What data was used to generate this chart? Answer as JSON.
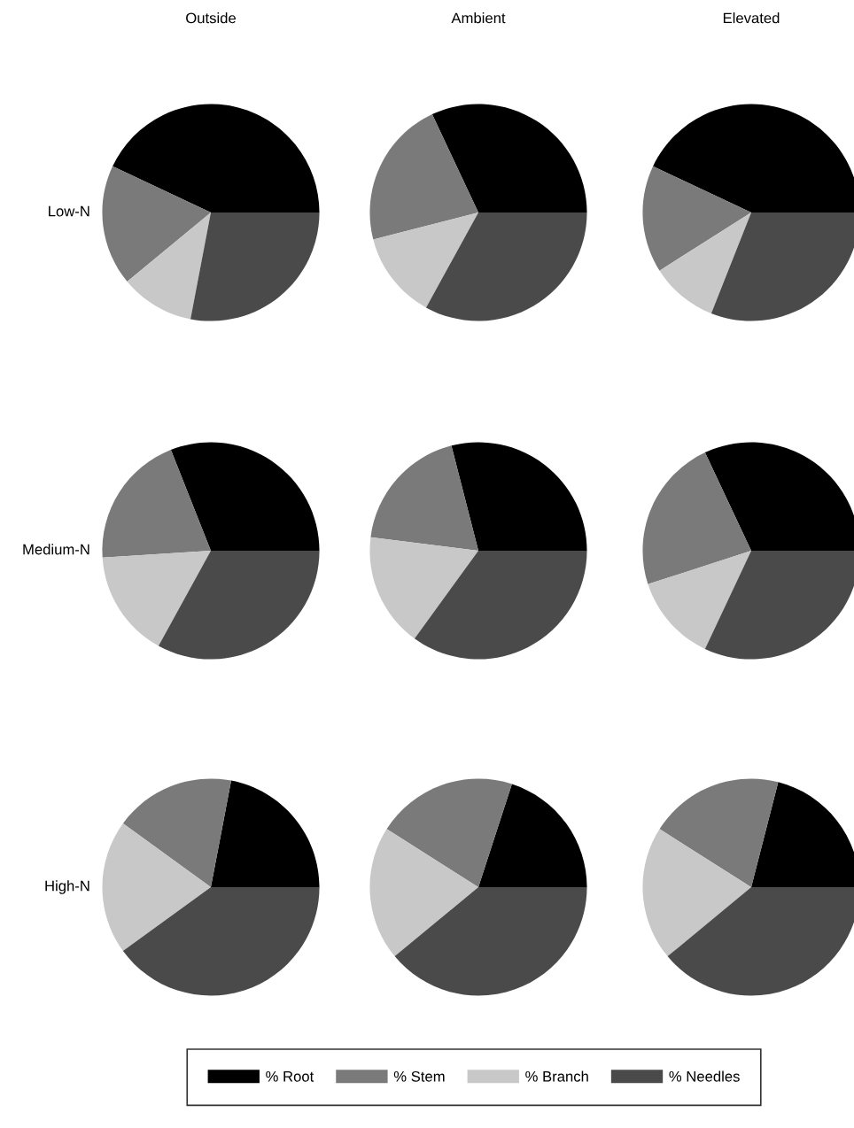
{
  "chart_data": [
    {
      "type": "pie",
      "title": "Outside",
      "ylabel": "Low-N",
      "categories": [
        "% Root",
        "% Stem",
        "% Branch",
        "% Needles"
      ],
      "values": [
        43,
        18,
        11,
        28
      ],
      "colors": [
        "#000000",
        "#7a7a7a",
        "#c8c8c8",
        "#4a4a4a"
      ],
      "legend": "bottom"
    },
    {
      "type": "pie",
      "title": "Ambient",
      "categories": [
        null,
        null,
        null,
        null
      ],
      "values": [
        32,
        22,
        13,
        33
      ],
      "colors": [
        "#000000",
        "#7a7a7a",
        "#c8c8c8",
        "#4a4a4a"
      ]
    },
    {
      "type": "pie",
      "title": "Elevated",
      "categories": [
        null,
        null,
        null,
        null
      ],
      "values": [
        43,
        16,
        10,
        31
      ],
      "colors": [
        "#000000",
        "#7a7a7a",
        "#c8c8c8",
        "#4a4a4a"
      ]
    },
    {
      "type": "pie",
      "ylabel": "Medium-N",
      "categories": [
        null,
        null,
        null,
        null
      ],
      "values": [
        31,
        20,
        16,
        33
      ],
      "colors": [
        "#000000",
        "#7a7a7a",
        "#c8c8c8",
        "#4a4a4a"
      ]
    },
    {
      "type": "pie",
      "categories": [
        null,
        null,
        null,
        null
      ],
      "values": [
        29,
        19,
        17,
        35
      ],
      "colors": [
        "#000000",
        "#7a7a7a",
        "#c8c8c8",
        "#4a4a4a"
      ]
    },
    {
      "type": "pie",
      "categories": [
        null,
        null,
        null,
        null
      ],
      "values": [
        32,
        23,
        13,
        32
      ],
      "colors": [
        "#000000",
        "#7a7a7a",
        "#c8c8c8",
        "#4a4a4a"
      ]
    },
    {
      "type": "pie",
      "ylabel": "High-N",
      "categories": [
        null,
        null,
        null,
        null
      ],
      "values": [
        22,
        18,
        20,
        40
      ],
      "colors": [
        "#000000",
        "#7a7a7a",
        "#c8c8c8",
        "#4a4a4a"
      ]
    },
    {
      "type": "pie",
      "categories": [
        null,
        null,
        null,
        null
      ],
      "values": [
        20,
        21,
        20,
        39
      ],
      "colors": [
        "#000000",
        "#7a7a7a",
        "#c8c8c8",
        "#4a4a4a"
      ]
    },
    {
      "type": "pie",
      "categories": [
        null,
        null,
        null,
        null
      ],
      "values": [
        21,
        20,
        20,
        39
      ],
      "colors": [
        "#000000",
        "#7a7a7a",
        "#c8c8c8",
        "#4a4a4a"
      ]
    }
  ]
}
